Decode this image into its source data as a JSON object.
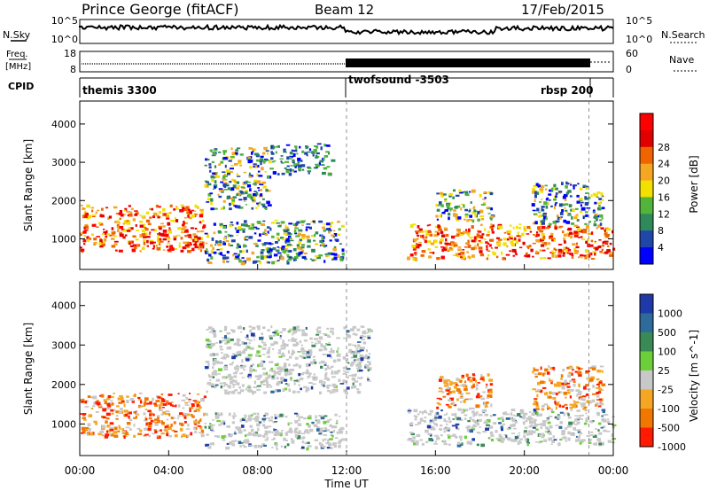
{
  "header": {
    "station": "Prince George (fitACF)",
    "beam": "Beam 12",
    "date": "17/Feb/2015"
  },
  "side_labels": {
    "nsky": "N.Sky",
    "nsearch": "N.Search",
    "freq": "Freq.",
    "freq_unit": "[MHz]",
    "nave": "Nave",
    "cpid": "CPID"
  },
  "noise_panel": {
    "left_ticks": [
      "10^5",
      "10^0"
    ],
    "right_ticks": [
      "10^5",
      "10^0"
    ]
  },
  "freq_panel": {
    "left_ticks": [
      "18",
      "8"
    ],
    "right_ticks": [
      "60",
      "0"
    ]
  },
  "cpid_segments": [
    {
      "label": "themis 3300"
    },
    {
      "label": "twofsound -3503"
    },
    {
      "label": "rbsp 200"
    }
  ],
  "chart_data": [
    {
      "type": "heatmap",
      "name": "Power",
      "xlabel": "",
      "ylabel": "Slant Range [km]",
      "x_range_hours": [
        0,
        24
      ],
      "ylim": [
        200,
        4600
      ],
      "y_ticks": [
        1000,
        2000,
        3000,
        4000
      ],
      "colorbar": {
        "label": "Power [dB]",
        "ticks": [
          4,
          8,
          12,
          16,
          20,
          24,
          28
        ],
        "colors": [
          "#0000ff",
          "#1f46a8",
          "#2e8a5a",
          "#52b43a",
          "#f2e000",
          "#f5a623",
          "#f06400",
          "#e00000",
          "#ff0000"
        ]
      },
      "echo_regions": [
        {
          "t": [
            0.0,
            5.6
          ],
          "r": [
            700,
            1900
          ],
          "level": "high"
        },
        {
          "t": [
            5.6,
            8.5
          ],
          "r": [
            1800,
            3400
          ],
          "level": "medium"
        },
        {
          "t": [
            8.5,
            11.3
          ],
          "r": [
            2700,
            3500
          ],
          "level": "low"
        },
        {
          "t": [
            5.6,
            11.8
          ],
          "r": [
            400,
            1500
          ],
          "level": "medium"
        },
        {
          "t": [
            14.7,
            24.0
          ],
          "r": [
            500,
            1400
          ],
          "level": "high"
        },
        {
          "t": [
            16.0,
            18.5
          ],
          "r": [
            1500,
            2300
          ],
          "level": "medium"
        },
        {
          "t": [
            20.3,
            23.5
          ],
          "r": [
            1400,
            2500
          ],
          "level": "medium"
        }
      ]
    },
    {
      "type": "heatmap",
      "name": "Velocity",
      "xlabel": "Time UT",
      "ylabel": "Slant Range [km]",
      "x_range_hours": [
        0,
        24
      ],
      "x_ticks": [
        "00:00",
        "04:00",
        "08:00",
        "12:00",
        "16:00",
        "20:00",
        "00:00"
      ],
      "ylim": [
        200,
        4600
      ],
      "y_ticks": [
        1000,
        2000,
        3000,
        4000
      ],
      "colorbar": {
        "label": "Velocity [m s^-1]",
        "ticks": [
          1000,
          500,
          100,
          25,
          -25,
          -100,
          -500,
          -1000
        ],
        "colors": [
          "#1f3aa8",
          "#2e6a9a",
          "#3a8a55",
          "#6ccf3a",
          "#c8c8c8",
          "#f5a623",
          "#f07800",
          "#ff1a00"
        ]
      },
      "echo_regions": [
        {
          "t": [
            0.0,
            5.6
          ],
          "r": [
            700,
            1800
          ],
          "level": "negative"
        },
        {
          "t": [
            5.6,
            13.0
          ],
          "r": [
            1800,
            3500
          ],
          "level": "ground"
        },
        {
          "t": [
            5.6,
            11.8
          ],
          "r": [
            400,
            1300
          ],
          "level": "ground"
        },
        {
          "t": [
            14.7,
            24.0
          ],
          "r": [
            500,
            1400
          ],
          "level": "ground"
        },
        {
          "t": [
            16.0,
            18.5
          ],
          "r": [
            1400,
            2300
          ],
          "level": "negative"
        },
        {
          "t": [
            20.3,
            23.5
          ],
          "r": [
            1400,
            2500
          ],
          "level": "negative"
        }
      ]
    }
  ]
}
